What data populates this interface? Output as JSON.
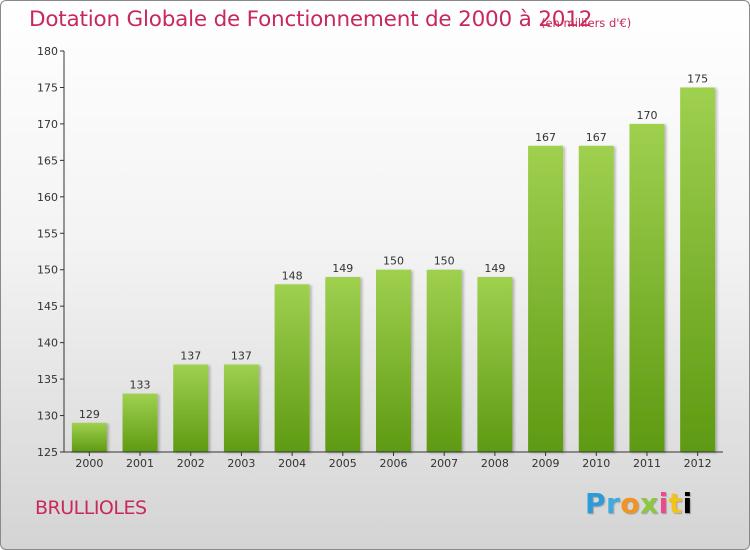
{
  "header": {
    "title": "Dotation Globale de Fonctionnement de 2000 à 2012",
    "subtitle": "(en milliers d'€)"
  },
  "footer": {
    "commune": "BRULLIOLES",
    "logo_text": "Proxiti"
  },
  "colors": {
    "title": "#c8285a",
    "bar_top": "#9fd04f",
    "bar_bottom": "#5e9a12",
    "axis": "#333333"
  },
  "chart_data": {
    "type": "bar",
    "title": "Dotation Globale de Fonctionnement de 2000 à 2012",
    "subtitle": "(en milliers d'€)",
    "categories": [
      "2000",
      "2001",
      "2002",
      "2003",
      "2004",
      "2005",
      "2006",
      "2007",
      "2008",
      "2009",
      "2010",
      "2011",
      "2012"
    ],
    "values": [
      129,
      133,
      137,
      137,
      148,
      149,
      150,
      150,
      149,
      167,
      167,
      170,
      175
    ],
    "xlabel": "",
    "ylabel": "",
    "ylim": [
      125,
      180
    ],
    "yticks": [
      125,
      130,
      135,
      140,
      145,
      150,
      155,
      160,
      165,
      170,
      175,
      180
    ],
    "grid": false,
    "legend": "none"
  }
}
